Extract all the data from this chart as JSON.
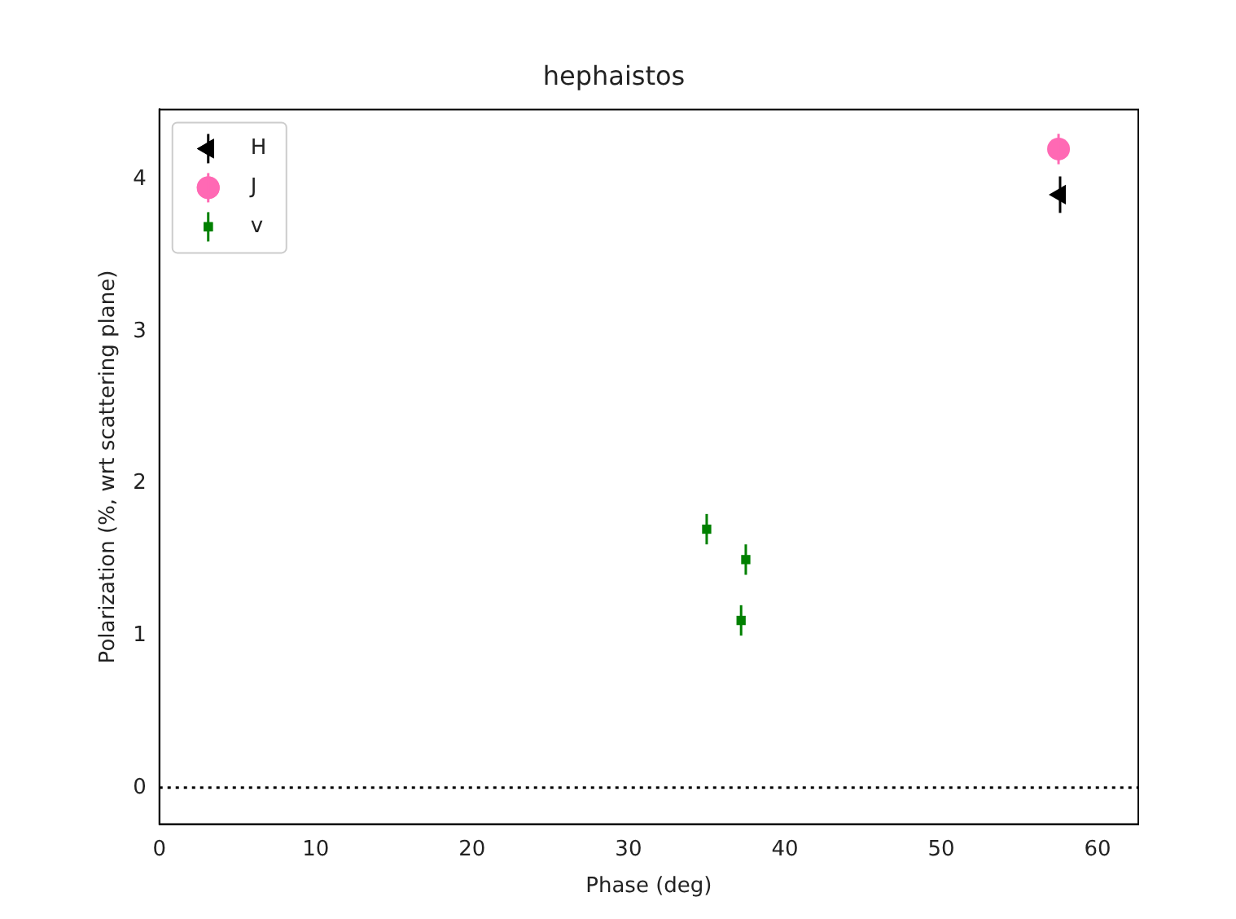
{
  "chart_data": {
    "type": "scatter",
    "title": "hephaistos",
    "xlabel": "Phase (deg)",
    "ylabel": "Polarization (%, wrt scattering plane)",
    "series": [
      {
        "name": "H",
        "color": "#000000",
        "marker": "triangle-left",
        "x": [
          57.6
        ],
        "values": [
          3.9
        ],
        "errors": [
          0.12
        ]
      },
      {
        "name": "J",
        "color": "#ff69b4",
        "marker": "circle",
        "x": [
          57.5
        ],
        "values": [
          4.2
        ],
        "errors": [
          0.1
        ]
      },
      {
        "name": "v",
        "color": "#008000",
        "marker": "square",
        "x": [
          35.0,
          37.5,
          37.2
        ],
        "values": [
          1.7,
          1.5,
          1.1
        ],
        "errors": [
          0.1,
          0.1,
          0.1
        ]
      }
    ],
    "xlim": [
      0,
      62.6
    ],
    "xticks": [
      0,
      10,
      20,
      30,
      40,
      50,
      60
    ],
    "ylim": [
      -0.24,
      4.46
    ],
    "yticks": [
      0,
      1,
      2,
      3,
      4
    ],
    "ref_lines": [
      {
        "axis": "y",
        "value": 0,
        "color": "#000000",
        "line_style": "dotted"
      }
    ],
    "grid": false,
    "legend": "top left"
  }
}
